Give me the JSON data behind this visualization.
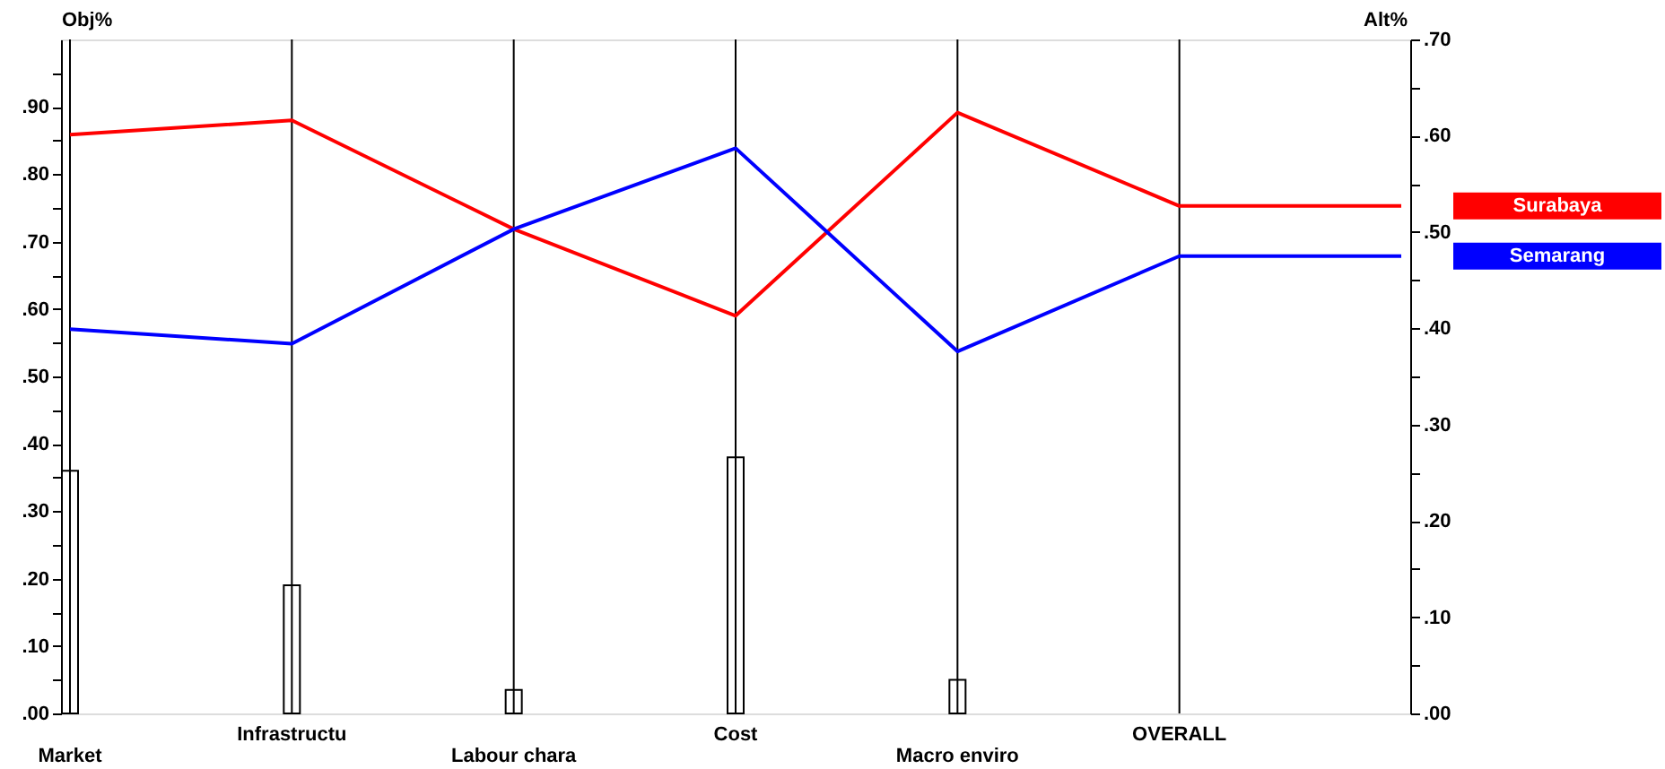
{
  "chart_data": {
    "type": "line",
    "ylabel": "Obj%",
    "y2label": "Alt%",
    "categories": [
      "Market",
      "Infrastructu",
      "Labour chara",
      "Cost",
      "Macro enviro",
      "OVERALL",
      null
    ],
    "ylim": [
      0,
      1
    ],
    "yticks": [
      {
        "value": 0,
        "label": ".00"
      },
      {
        "value": 0.05,
        "label": null
      },
      {
        "value": 0.1,
        "label": ".10"
      },
      {
        "value": 0.15,
        "label": null
      },
      {
        "value": 0.2,
        "label": ".20"
      },
      {
        "value": 0.25,
        "label": null
      },
      {
        "value": 0.3,
        "label": ".30"
      },
      {
        "value": 0.35,
        "label": null
      },
      {
        "value": 0.4,
        "label": ".40"
      },
      {
        "value": 0.45,
        "label": null
      },
      {
        "value": 0.5,
        "label": ".50"
      },
      {
        "value": 0.55,
        "label": null
      },
      {
        "value": 0.6,
        "label": ".60"
      },
      {
        "value": 0.65,
        "label": null
      },
      {
        "value": 0.7,
        "label": ".70"
      },
      {
        "value": 0.75,
        "label": null
      },
      {
        "value": 0.8,
        "label": ".80"
      },
      {
        "value": 0.85,
        "label": null
      },
      {
        "value": 0.9,
        "label": ".90"
      },
      {
        "value": 0.95,
        "label": null
      }
    ],
    "y2lim": [
      0,
      0.7
    ],
    "y2ticks": [
      {
        "value": 0,
        "label": ".00"
      },
      {
        "value": 0.05,
        "label": null
      },
      {
        "value": 0.1,
        "label": ".10"
      },
      {
        "value": 0.15,
        "label": null
      },
      {
        "value": 0.2,
        "label": ".20"
      },
      {
        "value": 0.25,
        "label": null
      },
      {
        "value": 0.3,
        "label": ".30"
      },
      {
        "value": 0.35,
        "label": null
      },
      {
        "value": 0.4,
        "label": ".40"
      },
      {
        "value": 0.45,
        "label": null
      },
      {
        "value": 0.5,
        "label": ".50"
      },
      {
        "value": 0.55,
        "label": null
      },
      {
        "value": 0.6,
        "label": ".60"
      },
      {
        "value": 0.65,
        "label": null
      },
      {
        "value": 0.7,
        "label": ".70"
      }
    ],
    "grid": "x",
    "legend": "right",
    "series": [
      {
        "name": "Surabaya",
        "color": "#ff0000",
        "axis": "y2",
        "values": [
          0.601,
          0.616,
          0.503,
          0.413,
          0.624,
          0.527,
          0.527
        ]
      },
      {
        "name": "Semarang",
        "color": "#0000ff",
        "axis": "y2",
        "values": [
          0.399,
          0.384,
          0.503,
          0.587,
          0.376,
          0.475,
          0.475
        ]
      },
      {
        "type": "bar",
        "color": "#ffffff",
        "values": [
          0.36,
          0.19,
          0.035,
          0.38,
          0.05,
          null,
          null
        ]
      }
    ]
  }
}
